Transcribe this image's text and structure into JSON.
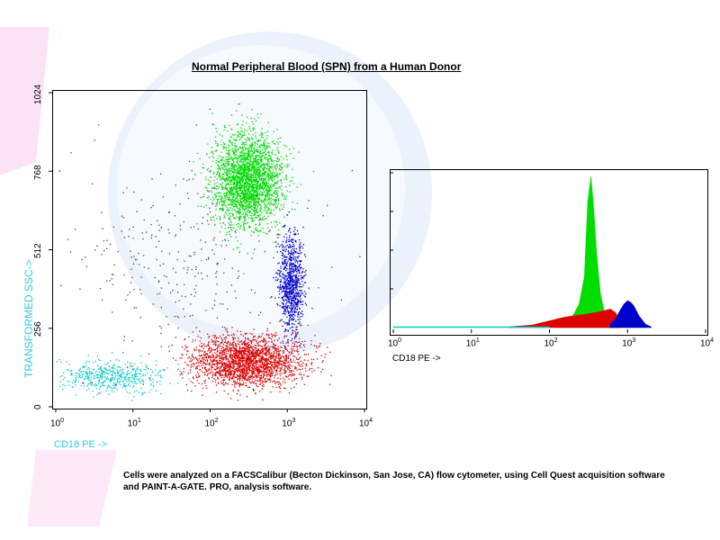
{
  "chart_data": [
    {
      "type": "scatter",
      "title": "Normal Peripheral Blood (SPN) from a Human Donor",
      "xlabel": "CD18 PE ->",
      "ylabel": "TRANSFORMED SSC->",
      "x_scale": "log",
      "xlim": [
        1,
        10000
      ],
      "ylim": [
        0,
        1024
      ],
      "x_ticks": [
        {
          "base": "10",
          "exp": "0"
        },
        {
          "base": "10",
          "exp": "1"
        },
        {
          "base": "10",
          "exp": "2"
        },
        {
          "base": "10",
          "exp": "3"
        },
        {
          "base": "10",
          "exp": "4"
        }
      ],
      "y_ticks": [
        "0",
        "256",
        "512",
        "768",
        "1024"
      ],
      "populations": [
        {
          "color": "#00dd00",
          "center_x": 300,
          "center_y": 740,
          "spread_logx": 0.22,
          "spread_y": 75,
          "count": 2600
        },
        {
          "color": "#0000cc",
          "center_x": 1100,
          "center_y": 400,
          "spread_logx": 0.08,
          "spread_y": 80,
          "count": 900
        },
        {
          "color": "#dd0000",
          "center_x": 300,
          "center_y": 150,
          "spread_logx": 0.35,
          "spread_y": 40,
          "count": 2200
        },
        {
          "color": "#00cccc",
          "center_x": 5,
          "center_y": 100,
          "spread_logx": 0.35,
          "spread_y": 25,
          "count": 500
        },
        {
          "color": "#444444",
          "center_x": 40,
          "center_y": 500,
          "spread_logx": 0.7,
          "spread_y": 180,
          "count": 350
        }
      ]
    },
    {
      "type": "area",
      "xlabel": "CD18 PE ->",
      "x_scale": "log",
      "xlim": [
        1,
        10000
      ],
      "x_ticks": [
        {
          "base": "10",
          "exp": "0"
        },
        {
          "base": "10",
          "exp": "1"
        },
        {
          "base": "10",
          "exp": "2"
        },
        {
          "base": "10",
          "exp": "3"
        },
        {
          "base": "10",
          "exp": "4"
        }
      ],
      "series": [
        {
          "color": "#00dd00",
          "x": [
            120,
            160,
            200,
            240,
            280,
            310,
            340,
            370,
            400,
            450,
            500,
            560,
            640
          ],
          "values": [
            2,
            6,
            14,
            28,
            60,
            150,
            180,
            140,
            90,
            40,
            20,
            10,
            4
          ]
        },
        {
          "color": "#dd0000",
          "x": [
            30,
            60,
            100,
            150,
            200,
            300,
            400,
            500,
            600,
            700,
            800
          ],
          "values": [
            1,
            3,
            8,
            12,
            14,
            16,
            18,
            20,
            22,
            18,
            8
          ]
        },
        {
          "color": "#0000cc",
          "x": [
            600,
            700,
            800,
            900,
            1000,
            1100,
            1200,
            1400,
            1700,
            2000
          ],
          "values": [
            4,
            10,
            20,
            28,
            32,
            30,
            26,
            14,
            4,
            1
          ]
        },
        {
          "color": "#00cccc",
          "x": [
            1,
            5,
            10,
            30,
            60,
            100
          ],
          "values": [
            1,
            1,
            1,
            1,
            1,
            1
          ]
        }
      ]
    }
  ],
  "caption": "Cells were analyzed on a FACSCalibur (Becton Dickinson, San Jose, CA) flow cytometer, using Cell Quest acquisition software and PAINT-A-GATE. PRO, analysis software."
}
